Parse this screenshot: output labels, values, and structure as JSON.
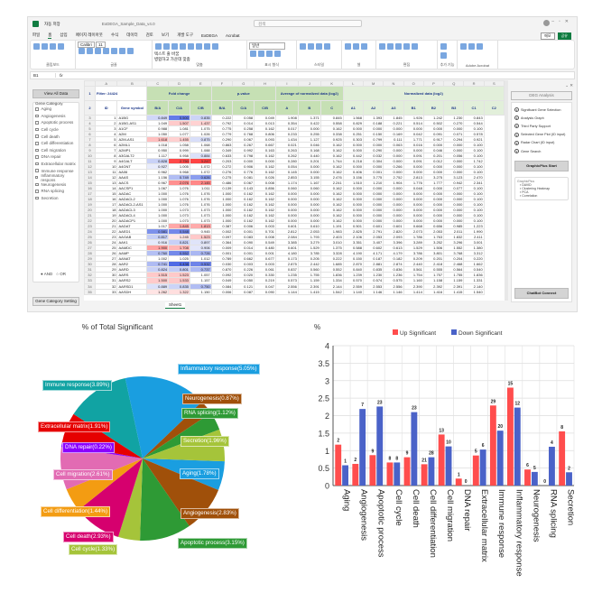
{
  "excel": {
    "autosave": "자동 저장",
    "title": "ExDEGA_Sample_Data_v4.0",
    "search_placeholder": "검색",
    "menu": [
      "파일",
      "홈",
      "삽입",
      "페이지 레이아웃",
      "수식",
      "데이터",
      "검토",
      "보기",
      "개발 도구",
      "ExDEGA",
      "Acrobat"
    ],
    "menu_active": 1,
    "share": [
      "메모",
      "공유"
    ],
    "ribbon_groups": [
      "클립보드",
      "글꼴",
      "맞춤",
      "표시 형식",
      "스타일",
      "셀",
      "편집",
      "추가 기능",
      "Adobe Acrobat"
    ],
    "font_name": "Calibri",
    "font_size": "11",
    "number_format": "일반",
    "wrap_text": "텍스트 줄 바꿈",
    "merge": "병합하고 가운데 맞춤",
    "name_box": "B1",
    "formula_symbol": "fx",
    "sheet_tab": "Sheet1"
  },
  "left_pane": {
    "view_all": "View All Data",
    "group_label": "Gene Category",
    "categories": [
      "Aging",
      "Angiogenesis",
      "Apoptotic process",
      "Cell cycle",
      "Cell death",
      "Cell differentiation",
      "Cell migration",
      "DNA repair",
      "Extracellular matrix",
      "Immune response",
      "Inflammatory respons",
      "Neurogenesis",
      "RNA splicing",
      "Secretion"
    ],
    "and_label": "AND",
    "or_label": "OR",
    "setting": "Gene Category Setting"
  },
  "right_pane": {
    "title": "DEG Analysis",
    "items": [
      "Significant Gene Selection",
      "Analysis Graph",
      "Third Party Support",
      "Selected Gene Plot (ID input)",
      "Radar Chart (ID input)",
      "Gene Search"
    ],
    "graphic_start": "GraphicPlus Start",
    "group_label": "GraphicPlus",
    "group_items": [
      "DAVID",
      "Clustering Heatmap",
      "PCA",
      "Correlation"
    ],
    "chatbot": "ChatBot Connect"
  },
  "sheet": {
    "letters": [
      "A",
      "B",
      "C",
      "D",
      "E",
      "F",
      "G",
      "H",
      "I",
      "J",
      "K",
      "L",
      "M",
      "N",
      "O",
      "P",
      "Q",
      "R",
      "S"
    ],
    "filter": "Filter: 24424",
    "groups": [
      "Fold change",
      "p-value",
      "Average of normalized data (log2)",
      "Normalized data (log2)"
    ],
    "subheaders": [
      "ID",
      "Gene symbol",
      "B/A",
      "C/A",
      "C/B",
      "B/A",
      "C/A",
      "C/B",
      "A",
      "B",
      "C",
      "A1",
      "A2",
      "A3",
      "B1",
      "B2",
      "B3",
      "C1",
      "C2"
    ],
    "heat_colors": {
      "up": "#ff3030",
      "down": "#3050e0"
    },
    "rows": [
      [
        1,
        "A1BG",
        0.849,
        0.5,
        0.835,
        0.222,
        0.058,
        0.049,
        1.908,
        1.371,
        0.845,
        1.568,
        1.393,
        1.845,
        1.926,
        1.242,
        1.23,
        0.843
      ],
      [
        2,
        "A1BG-AS1",
        1.049,
        1.507,
        1.437,
        0.792,
        0.014,
        0.013,
        0.354,
        0.422,
        0.558,
        0.829,
        0.188,
        0.221,
        0.514,
        0.502,
        0.27,
        0.544
      ],
      [
        3,
        "A1CF",
        0.988,
        1.081,
        1.075,
        0.775,
        0.258,
        0.162,
        0.017,
        0.0,
        0.162,
        0.0,
        0.0,
        0.0,
        0.0,
        0.0,
        0.0,
        0.1
      ],
      [
        4,
        "A2M",
        1.05,
        1.077,
        1.026,
        0.779,
        0.768,
        0.806,
        0.233,
        0.255,
        0.338,
        0.251,
        0.15,
        0.169,
        0.042,
        0.091,
        0.071,
        0.578
      ],
      [
        5,
        "A2M-AS1",
        1.618,
        1.455,
        0.875,
        0.29,
        0.067,
        0.093,
        1.434,
        1.127,
        0.925,
        0.303,
        0.799,
        0.111,
        1.771,
        0.917,
        0.294,
        0.921
      ],
      [
        6,
        "A2ML1",
        1.018,
        1.058,
        1.068,
        0.863,
        0.267,
        0.667,
        0.021,
        0.046,
        0.162,
        0.0,
        0.0,
        0.063,
        0.016,
        0.0,
        0.0,
        0.1
      ],
      [
        7,
        "A2MP1",
        0.95,
        0.999,
        1.088,
        0.349,
        0.992,
        0.163,
        0.263,
        0.168,
        0.162,
        0.0,
        0.29,
        0.0,
        0.0,
        0.046,
        0.0,
        0.1
      ],
      [
        8,
        "A3GALT2",
        1.117,
        0.958,
        0.884,
        0.633,
        0.798,
        0.162,
        0.262,
        0.44,
        0.162,
        0.442,
        0.032,
        0.0,
        0.091,
        0.201,
        0.056,
        0.1
      ],
      [
        9,
        "A4GALT",
        0.828,
        2.75,
        3.247,
        0.203,
        0.0,
        0.0,
        0.28,
        0.201,
        1.744,
        0.218,
        0.304,
        0.0,
        0.091,
        0.012,
        0.0,
        1.742
      ],
      [
        10,
        "A4GNT",
        0.927,
        1.005,
        1.072,
        0.272,
        0.906,
        0.162,
        0.054,
        0.0,
        0.162,
        0.0,
        0.0,
        0.266,
        0.0,
        0.0,
        0.0,
        0.1
      ],
      [
        11,
        "AA06",
        0.962,
        0.968,
        1.072,
        0.276,
        0.776,
        0.162,
        0.145,
        0.0,
        0.162,
        0.406,
        0.001,
        0.0,
        0.0,
        0.0,
        0.0,
        0.1
      ],
      [
        12,
        "AAAS",
        1.156,
        0.749,
        0.626,
        0.275,
        0.081,
        0.026,
        2.853,
        3.155,
        2.476,
        3.156,
        3.775,
        2.752,
        2.813,
        3.275,
        3.123,
        2.47
      ],
      [
        13,
        "AACS",
        0.967,
        2.076,
        2.145,
        0.486,
        0.067,
        0.008,
        1.174,
        1.167,
        2.241,
        1.51,
        1.21,
        1.904,
        1.776,
        1.777,
        0.942,
        2.341
      ],
      [
        14,
        "AACSP1",
        1.067,
        1.076,
        1.011,
        0.139,
        0.143,
        0.856,
        0.06,
        0.06,
        0.162,
        0.0,
        0.0,
        0.0,
        0.048,
        0.0,
        0.077,
        0.1
      ],
      [
        15,
        "AADAC",
        1.0,
        1.076,
        1.076,
        1.0,
        0.162,
        0.162,
        0.0,
        0.0,
        0.162,
        0.0,
        0.0,
        0.0,
        0.0,
        0.0,
        0.0,
        0.1
      ],
      [
        16,
        "AADACL2",
        1.0,
        1.076,
        1.076,
        1.0,
        0.162,
        0.162,
        0.0,
        0.0,
        0.162,
        0.0,
        0.0,
        0.0,
        0.0,
        0.0,
        0.0,
        0.1
      ],
      [
        17,
        "AADACL2-AS1",
        1.0,
        1.076,
        1.076,
        1.0,
        0.162,
        0.162,
        0.0,
        0.0,
        0.162,
        0.0,
        0.0,
        0.0,
        0.0,
        0.0,
        0.0,
        0.1
      ],
      [
        18,
        "AADACL3",
        1.0,
        1.073,
        1.073,
        1.0,
        0.162,
        0.162,
        0.0,
        0.0,
        0.162,
        0.0,
        0.0,
        0.0,
        0.0,
        0.0,
        0.0,
        0.1
      ],
      [
        19,
        "AADACL4",
        1.0,
        1.073,
        1.073,
        1.0,
        0.162,
        0.162,
        0.0,
        0.0,
        0.162,
        0.0,
        0.0,
        0.0,
        0.0,
        0.0,
        0.0,
        0.1
      ],
      [
        20,
        "AADACP1",
        1.0,
        1.073,
        1.073,
        1.0,
        0.162,
        0.162,
        0.0,
        0.0,
        0.162,
        0.0,
        0.0,
        0.0,
        0.0,
        0.0,
        0.0,
        0.1
      ],
      [
        21,
        "AADAT",
        1.017,
        1.845,
        1.813,
        0.387,
        0.006,
        0.003,
        0.601,
        0.61,
        1.191,
        0.501,
        0.601,
        0.601,
        0.668,
        0.656,
        0.985,
        1.223
      ],
      [
        22,
        "AAED1",
        0.581,
        0.548,
        0.945,
        0.002,
        0.001,
        0.701,
        2.812,
        2.053,
        1.983,
        2.825,
        2.791,
        2.82,
        2.073,
        2.053,
        2.011,
        1.99
      ],
      [
        23,
        "AAGAB",
        0.817,
        1.245,
        1.523,
        0.097,
        0.083,
        0.008,
        2.084,
        1.793,
        2.403,
        2.106,
        2.053,
        2.093,
        1.786,
        1.763,
        1.832,
        2.411
      ],
      [
        24,
        "AAK1",
        0.916,
        0.821,
        0.897,
        0.364,
        0.09,
        0.549,
        3.385,
        3.279,
        3.01,
        3.351,
        3.407,
        3.396,
        3.289,
        3.252,
        3.296,
        3.001
      ],
      [
        25,
        "AAMDC",
        1.9,
        1.708,
        0.906,
        0.009,
        0.014,
        0.48,
        0.601,
        1.529,
        1.375,
        0.588,
        0.602,
        0.613,
        1.529,
        1.506,
        1.552,
        1.38
      ],
      [
        26,
        "AAMP",
        0.76,
        0.552,
        0.726,
        0.001,
        0.001,
        0.001,
        4.18,
        3.785,
        3.328,
        4.19,
        4.171,
        4.179,
        3.786,
        3.801,
        3.768,
        3.312
      ],
      [
        27,
        "AANAT",
        1.002,
        1.025,
        1.012,
        0.789,
        0.662,
        0.677,
        0.173,
        0.205,
        0.222,
        0.15,
        0.187,
        0.182,
        0.209,
        0.201,
        0.204,
        0.22
      ],
      [
        28,
        "AAR2",
        0.741,
        0.438,
        0.532,
        0.03,
        0.003,
        0.003,
        2.875,
        2.442,
        1.685,
        2.87,
        2.881,
        2.874,
        2.44,
        2.418,
        2.468,
        1.662
      ],
      [
        29,
        "AARD",
        0.824,
        0.801,
        0.737,
        0.87,
        0.226,
        0.061,
        0.837,
        0.56,
        0.552,
        0.84,
        0.835,
        0.836,
        0.561,
        0.555,
        0.564,
        0.54
      ],
      [
        30,
        "AARS",
        1.515,
        1.523,
        1.057,
        0.092,
        0.02,
        0.33,
        1.235,
        1.755,
        1.836,
        1.239,
        1.23,
        1.236,
        1.754,
        1.757,
        1.755,
        1.836
      ],
      [
        31,
        "AARS2",
        1.5,
        1.533,
        1.157,
        0.049,
        0.05,
        0.219,
        0.573,
        1.159,
        1.334,
        0.57,
        0.574,
        0.575,
        1.16,
        1.158,
        1.159,
        1.331
      ],
      [
        32,
        "AARSD1",
        0.889,
        0.835,
        0.75,
        0.084,
        0.121,
        0.047,
        2.556,
        2.391,
        2.144,
        2.559,
        2.553,
        2.556,
        2.39,
        2.392,
        2.391,
        2.14
      ],
      [
        33,
        "AASDH",
        1.262,
        1.322,
        1.15,
        0.006,
        0.087,
        0.09,
        1.144,
        1.415,
        1.542,
        1.14,
        1.146,
        1.146,
        1.414,
        1.416,
        1.415,
        1.54
      ]
    ]
  },
  "chart_data": [
    {
      "type": "pie",
      "title": "% of Total Significant",
      "slices": [
        {
          "label": "Aging",
          "value": 1.78,
          "color": "#1a9ee0"
        },
        {
          "label": "Angiogenesis",
          "value": 2.83,
          "color": "#a0500a"
        },
        {
          "label": "Apoptotic process",
          "value": 3.15,
          "color": "#2e9a35"
        },
        {
          "label": "Cell cycle",
          "value": 1.33,
          "color": "#a5c43a"
        },
        {
          "label": "Cell death",
          "value": 2.93,
          "color": "#d6006e"
        },
        {
          "label": "Cell differentiation",
          "value": 1.44,
          "color": "#f39c12"
        },
        {
          "label": "Cell migration",
          "value": 2.61,
          "color": "#e26bb3"
        },
        {
          "label": "DNA repair",
          "value": 0.22,
          "color": "#8b00ff"
        },
        {
          "label": "Extracellular matrix",
          "value": 1.91,
          "color": "#e60000"
        },
        {
          "label": "Immune response",
          "value": 3.89,
          "color": "#11a3a3"
        },
        {
          "label": "Inflammatory response",
          "value": 5.05,
          "color": "#1a9ee0"
        },
        {
          "label": "Neurogenesis",
          "value": 0.87,
          "color": "#a0500a"
        },
        {
          "label": "RNA splicing",
          "value": 1.12,
          "color": "#2e9a35"
        },
        {
          "label": "Secretion",
          "value": 1.96,
          "color": "#a5c43a"
        }
      ]
    },
    {
      "type": "bar",
      "ylabel": "%",
      "ylim": [
        0,
        4
      ],
      "yticks": [
        0,
        0.5,
        1,
        1.5,
        2,
        2.5,
        3,
        3.5,
        4
      ],
      "grid": true,
      "legend": "top",
      "categories": [
        "Aging",
        "Angiogenesis",
        "Apoptotic process",
        "Cell cycle",
        "Cell death",
        "Cell differentiation",
        "Cell migration",
        "DNA repair",
        "Extracellular matrix",
        "Immune response",
        "Inflammatory response",
        "Neurogenesis",
        "RNA splicing",
        "Secretion"
      ],
      "series": [
        {
          "name": "Up Significant",
          "color": "#ff4d4d",
          "values": [
            1.17,
            0.62,
            0.87,
            0.66,
            0.81,
            0.61,
            1.46,
            0.2,
            0.86,
            2.29,
            2.8,
            0.46,
            0,
            1.55
          ],
          "labels": [
            "2",
            "2",
            "9",
            "8",
            "9",
            "21",
            "13",
            "1",
            "5",
            "29",
            "15",
            "6",
            "0",
            "8"
          ]
        },
        {
          "name": "Down Significant",
          "color": "#4a62c8",
          "values": [
            0.58,
            2.19,
            2.26,
            0.66,
            2.1,
            0.81,
            1.12,
            0,
            1.03,
            1.57,
            2.23,
            0.39,
            1.11,
            0.38
          ],
          "labels": [
            "1",
            "7",
            "23",
            "8",
            "23",
            "28",
            "10",
            "0",
            "6",
            "20",
            "12",
            "5",
            "4",
            "2"
          ]
        }
      ]
    }
  ]
}
